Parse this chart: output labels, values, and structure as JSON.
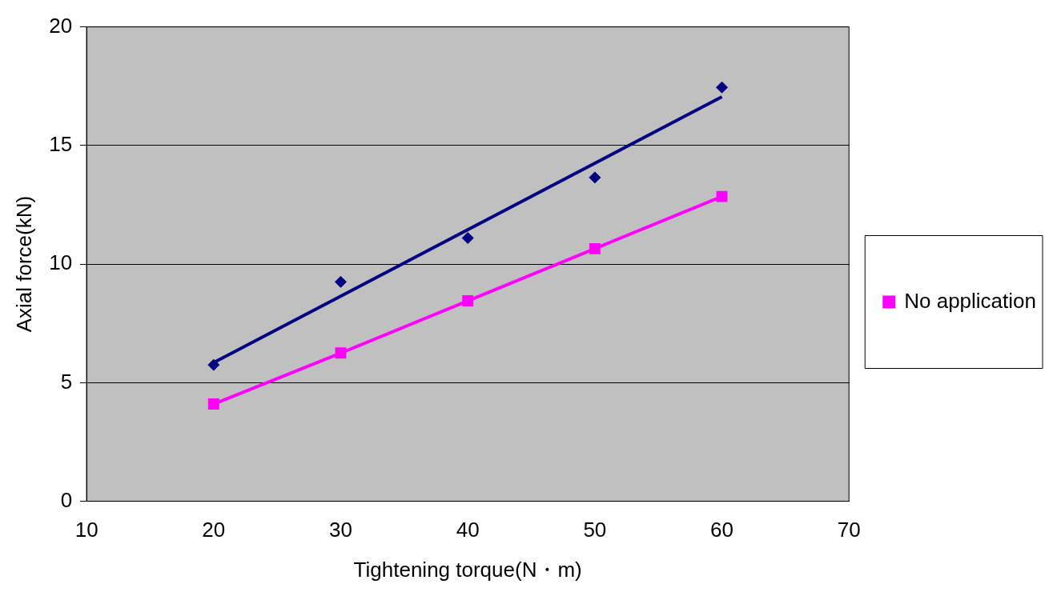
{
  "chart_data": {
    "type": "scatter",
    "xlabel": "Tightening torque(N・m)",
    "ylabel": "Axial force(kN)",
    "xlim": [
      10,
      70
    ],
    "xticks": [
      10,
      20,
      30,
      40,
      50,
      60,
      70
    ],
    "ylim": [
      0,
      20
    ],
    "yticks": [
      0,
      5,
      10,
      15,
      20
    ],
    "grid": "y",
    "legend": "right",
    "series": [
      {
        "type": "scatter",
        "color": "#000080",
        "marker": "diamond",
        "x": [
          20,
          30,
          40,
          50,
          60
        ],
        "values": [
          5.75,
          9.25,
          11.1,
          13.65,
          17.45
        ]
      },
      {
        "type": "line",
        "color": "#000080",
        "marker": "none",
        "x": [
          20,
          60
        ],
        "values": [
          5.85,
          17.05
        ]
      },
      {
        "type": "line",
        "name": "No application",
        "color": "#ff00ff",
        "marker": "square",
        "x": [
          20,
          30,
          40,
          50,
          60
        ],
        "values": [
          4.1,
          6.25,
          8.45,
          10.65,
          12.85
        ]
      }
    ]
  }
}
